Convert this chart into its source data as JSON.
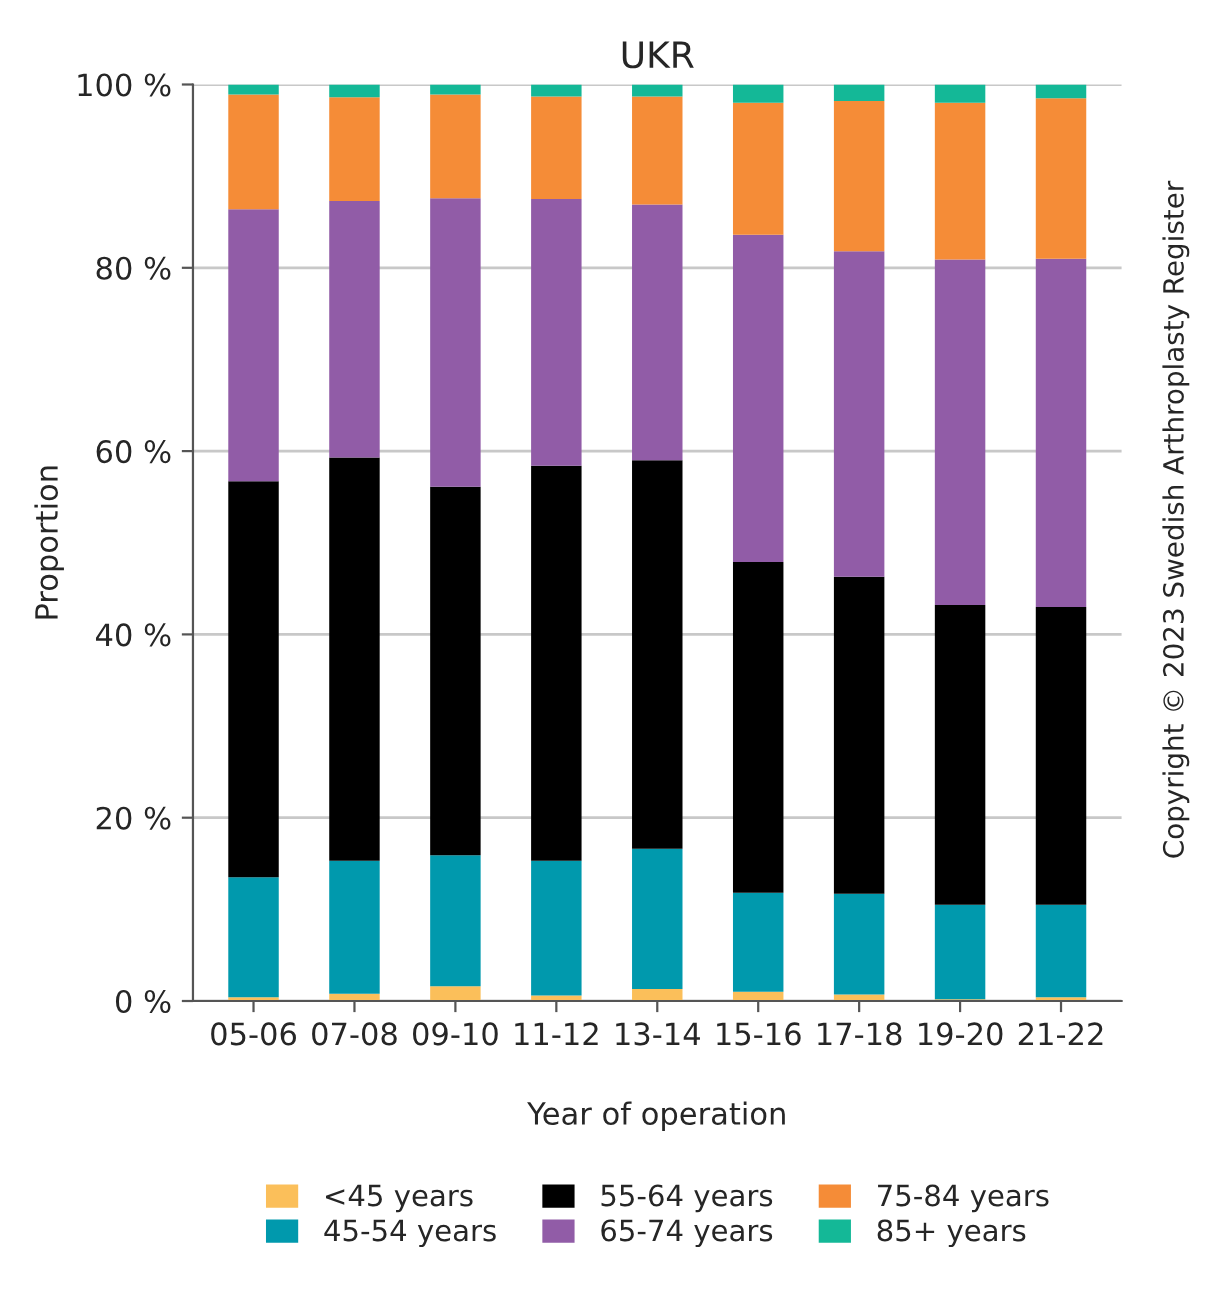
{
  "chart_data": {
    "type": "bar",
    "title": "UKR",
    "xlabel": "Year of operation",
    "ylabel": "Proportion",
    "categories": [
      "05-06",
      "07-08",
      "09-10",
      "11-12",
      "13-14",
      "15-16",
      "17-18",
      "19-20",
      "21-22"
    ],
    "stacked": true,
    "series": [
      {
        "name": "<45 years",
        "color": "#fbbf5a",
        "values": [
          0.4,
          0.8,
          1.6,
          0.6,
          1.3,
          1.0,
          0.7,
          0.2,
          0.4
        ]
      },
      {
        "name": "45-54 years",
        "color": "#0099ad",
        "values": [
          13.1,
          14.5,
          14.3,
          14.7,
          15.3,
          10.8,
          11.0,
          10.3,
          10.1
        ]
      },
      {
        "name": "55-64 years",
        "color": "#000000",
        "values": [
          43.2,
          44.0,
          40.2,
          43.1,
          42.4,
          36.1,
          34.6,
          32.7,
          32.5
        ]
      },
      {
        "name": "65-74 years",
        "color": "#915ca7",
        "values": [
          29.7,
          28.0,
          31.5,
          29.1,
          27.9,
          35.7,
          35.5,
          37.7,
          38.0
        ]
      },
      {
        "name": "75-84 years",
        "color": "#f58c37",
        "values": [
          12.5,
          11.3,
          11.3,
          11.2,
          11.8,
          14.4,
          16.4,
          17.1,
          17.5
        ]
      },
      {
        "name": "85+ years",
        "color": "#14b897",
        "values": [
          1.1,
          1.4,
          1.1,
          1.3,
          1.3,
          2.0,
          1.8,
          2.0,
          1.5
        ]
      }
    ],
    "ylim": [
      0,
      100
    ],
    "yticks": [
      {
        "value": 0,
        "label": "0 %"
      },
      {
        "value": 20,
        "label": "20 %"
      },
      {
        "value": 40,
        "label": "40 %"
      },
      {
        "value": 60,
        "label": "60 %"
      },
      {
        "value": 80,
        "label": "80 %"
      },
      {
        "value": 100,
        "label": "100 %"
      }
    ],
    "grid": "y",
    "legend": "bottom",
    "annotations": [
      "Copyright © 2023 Swedish Arthroplasty Register"
    ]
  }
}
